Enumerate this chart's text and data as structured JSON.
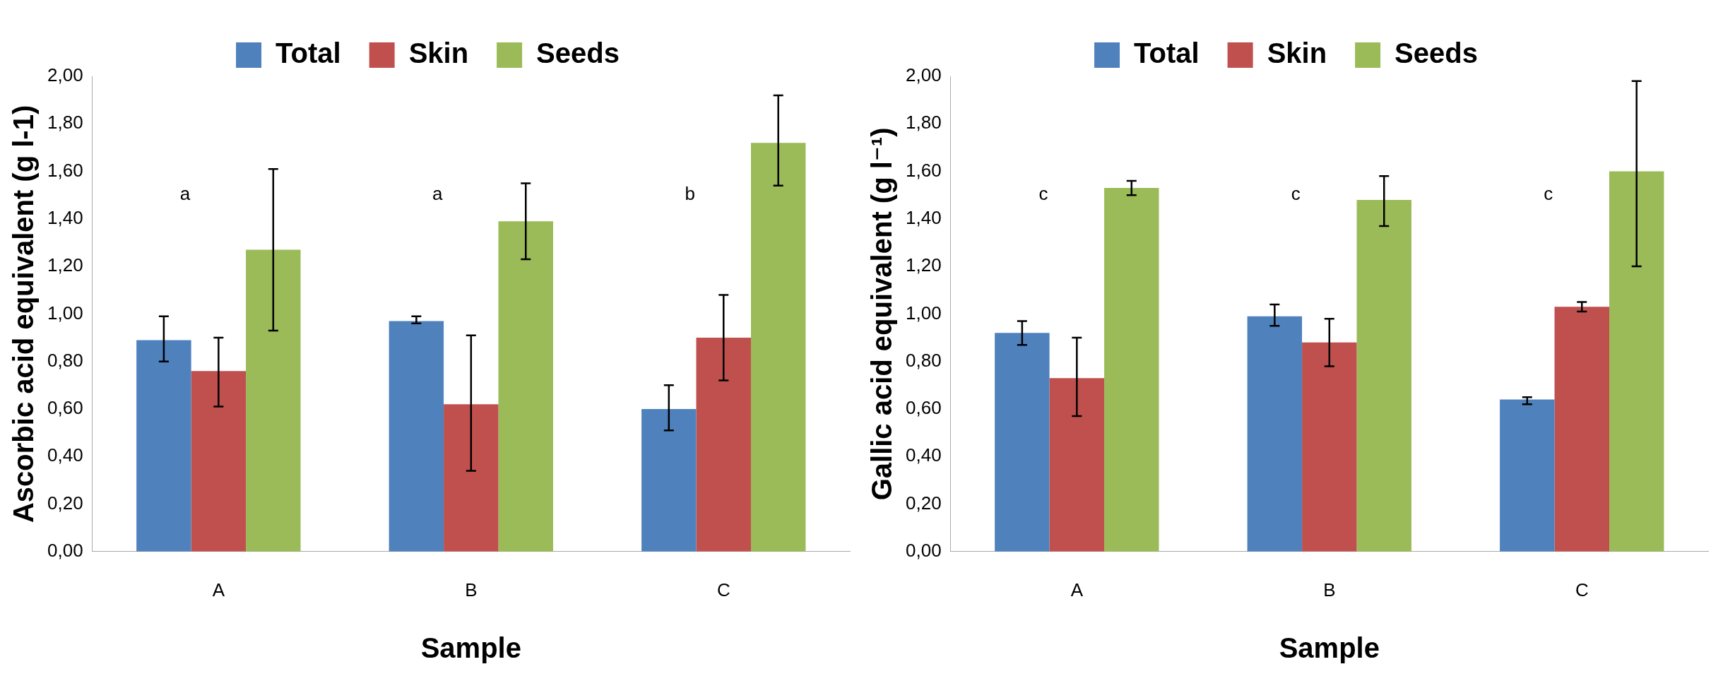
{
  "chart_data": [
    {
      "type": "bar",
      "xlabel": "Sample",
      "ylabel": "Ascorbic acid equivalent (g l-1)",
      "categories": [
        "A",
        "B",
        "C"
      ],
      "legend": "top",
      "grid": false,
      "ylim": [
        0,
        2
      ],
      "yticks": [
        {
          "value": 0,
          "label": "0,00"
        },
        {
          "value": 0.2,
          "label": "0,20"
        },
        {
          "value": 0.4,
          "label": "0,40"
        },
        {
          "value": 0.6,
          "label": "0,60"
        },
        {
          "value": 0.8,
          "label": "0,80"
        },
        {
          "value": 1,
          "label": "1,00"
        },
        {
          "value": 1.2,
          "label": "1,20"
        },
        {
          "value": 1.4,
          "label": "1,40"
        },
        {
          "value": 1.6,
          "label": "1,60"
        },
        {
          "value": 1.8,
          "label": "1,80"
        },
        {
          "value": 2,
          "label": "2,00"
        }
      ],
      "series": [
        {
          "name": "Total",
          "color": "#4f81bd",
          "values": [
            0.89,
            0.97,
            0.6
          ],
          "errors": [
            [
              0.8,
              0.99
            ],
            [
              0.96,
              0.99
            ],
            [
              0.51,
              0.7
            ]
          ]
        },
        {
          "name": "Skin",
          "color": "#c0504d",
          "values": [
            0.76,
            0.62,
            0.9
          ],
          "errors": [
            [
              0.61,
              0.9
            ],
            [
              0.34,
              0.91
            ],
            [
              0.72,
              1.08
            ]
          ]
        },
        {
          "name": "Seeds",
          "color": "#9bbb59",
          "values": [
            1.27,
            1.39,
            1.72
          ],
          "errors": [
            [
              0.93,
              1.61
            ],
            [
              1.23,
              1.55
            ],
            [
              1.54,
              1.92
            ]
          ]
        }
      ],
      "annotations": [
        "a",
        "a",
        "b"
      ]
    },
    {
      "type": "bar",
      "xlabel": "Sample",
      "ylabel": "Gallic acid equivalent (g l⁻¹)",
      "categories": [
        "A",
        "B",
        "C"
      ],
      "legend": "top",
      "grid": false,
      "ylim": [
        0,
        2
      ],
      "yticks": [
        {
          "value": 0,
          "label": "0,00"
        },
        {
          "value": 0.2,
          "label": "0,20"
        },
        {
          "value": 0.4,
          "label": "0,40"
        },
        {
          "value": 0.6,
          "label": "0,60"
        },
        {
          "value": 0.8,
          "label": "0,80"
        },
        {
          "value": 1,
          "label": "1,00"
        },
        {
          "value": 1.2,
          "label": "1,20"
        },
        {
          "value": 1.4,
          "label": "1,40"
        },
        {
          "value": 1.6,
          "label": "1,60"
        },
        {
          "value": 1.8,
          "label": "1,80"
        },
        {
          "value": 2,
          "label": "2,00"
        }
      ],
      "series": [
        {
          "name": "Total",
          "color": "#4f81bd",
          "values": [
            0.92,
            0.99,
            0.64
          ],
          "errors": [
            [
              0.87,
              0.97
            ],
            [
              0.95,
              1.04
            ],
            [
              0.62,
              0.65
            ]
          ]
        },
        {
          "name": "Skin",
          "color": "#c0504d",
          "values": [
            0.73,
            0.88,
            1.03
          ],
          "errors": [
            [
              0.57,
              0.9
            ],
            [
              0.78,
              0.98
            ],
            [
              1.01,
              1.05
            ]
          ]
        },
        {
          "name": "Seeds",
          "color": "#9bbb59",
          "values": [
            1.53,
            1.48,
            1.6
          ],
          "errors": [
            [
              1.5,
              1.56
            ],
            [
              1.37,
              1.58
            ],
            [
              1.2,
              1.98
            ]
          ]
        }
      ],
      "annotations": [
        "c",
        "c",
        "c"
      ]
    }
  ]
}
